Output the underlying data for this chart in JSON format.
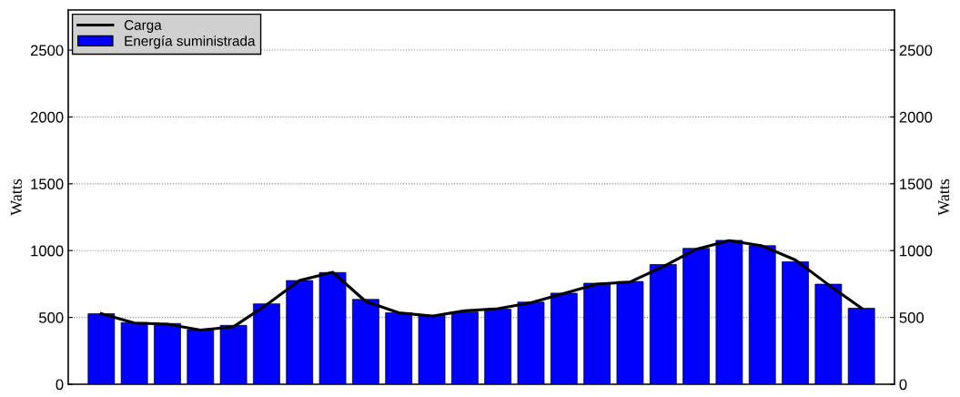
{
  "chart_data": {
    "type": "bar",
    "ylabel": "Watts",
    "y2label": "Watts",
    "categories": [
      null,
      null,
      null,
      null,
      null,
      null,
      null,
      null,
      null,
      null,
      null,
      null,
      null,
      null,
      null,
      null,
      null,
      null,
      null,
      null,
      null,
      null,
      null,
      null
    ],
    "series": [
      {
        "name": "Carga",
        "type": "line",
        "color": "#000000",
        "values": [
          528,
          458,
          450,
          405,
          430,
          595,
          776,
          838,
          620,
          535,
          510,
          550,
          565,
          610,
          680,
          750,
          765,
          880,
          1010,
          1075,
          1035,
          930,
          745,
          570
        ]
      },
      {
        "name": "Energía suministrada",
        "color": "#0000ff",
        "values": [
          528,
          461,
          455,
          408,
          441,
          602,
          776,
          836,
          635,
          535,
          515,
          542,
          562,
          615,
          682,
          756,
          769,
          896,
          1017,
          1077,
          1037,
          916,
          749,
          569
        ]
      }
    ],
    "ylim": [
      0,
      2800
    ],
    "yticks": [
      0,
      500,
      1000,
      1500,
      2000,
      2500
    ],
    "y2lim": [
      0,
      2800
    ],
    "y2ticks": [
      0,
      500,
      1000,
      1500,
      2000,
      2500
    ],
    "tick_labels": "y",
    "grid": "y",
    "legend": "top left"
  }
}
